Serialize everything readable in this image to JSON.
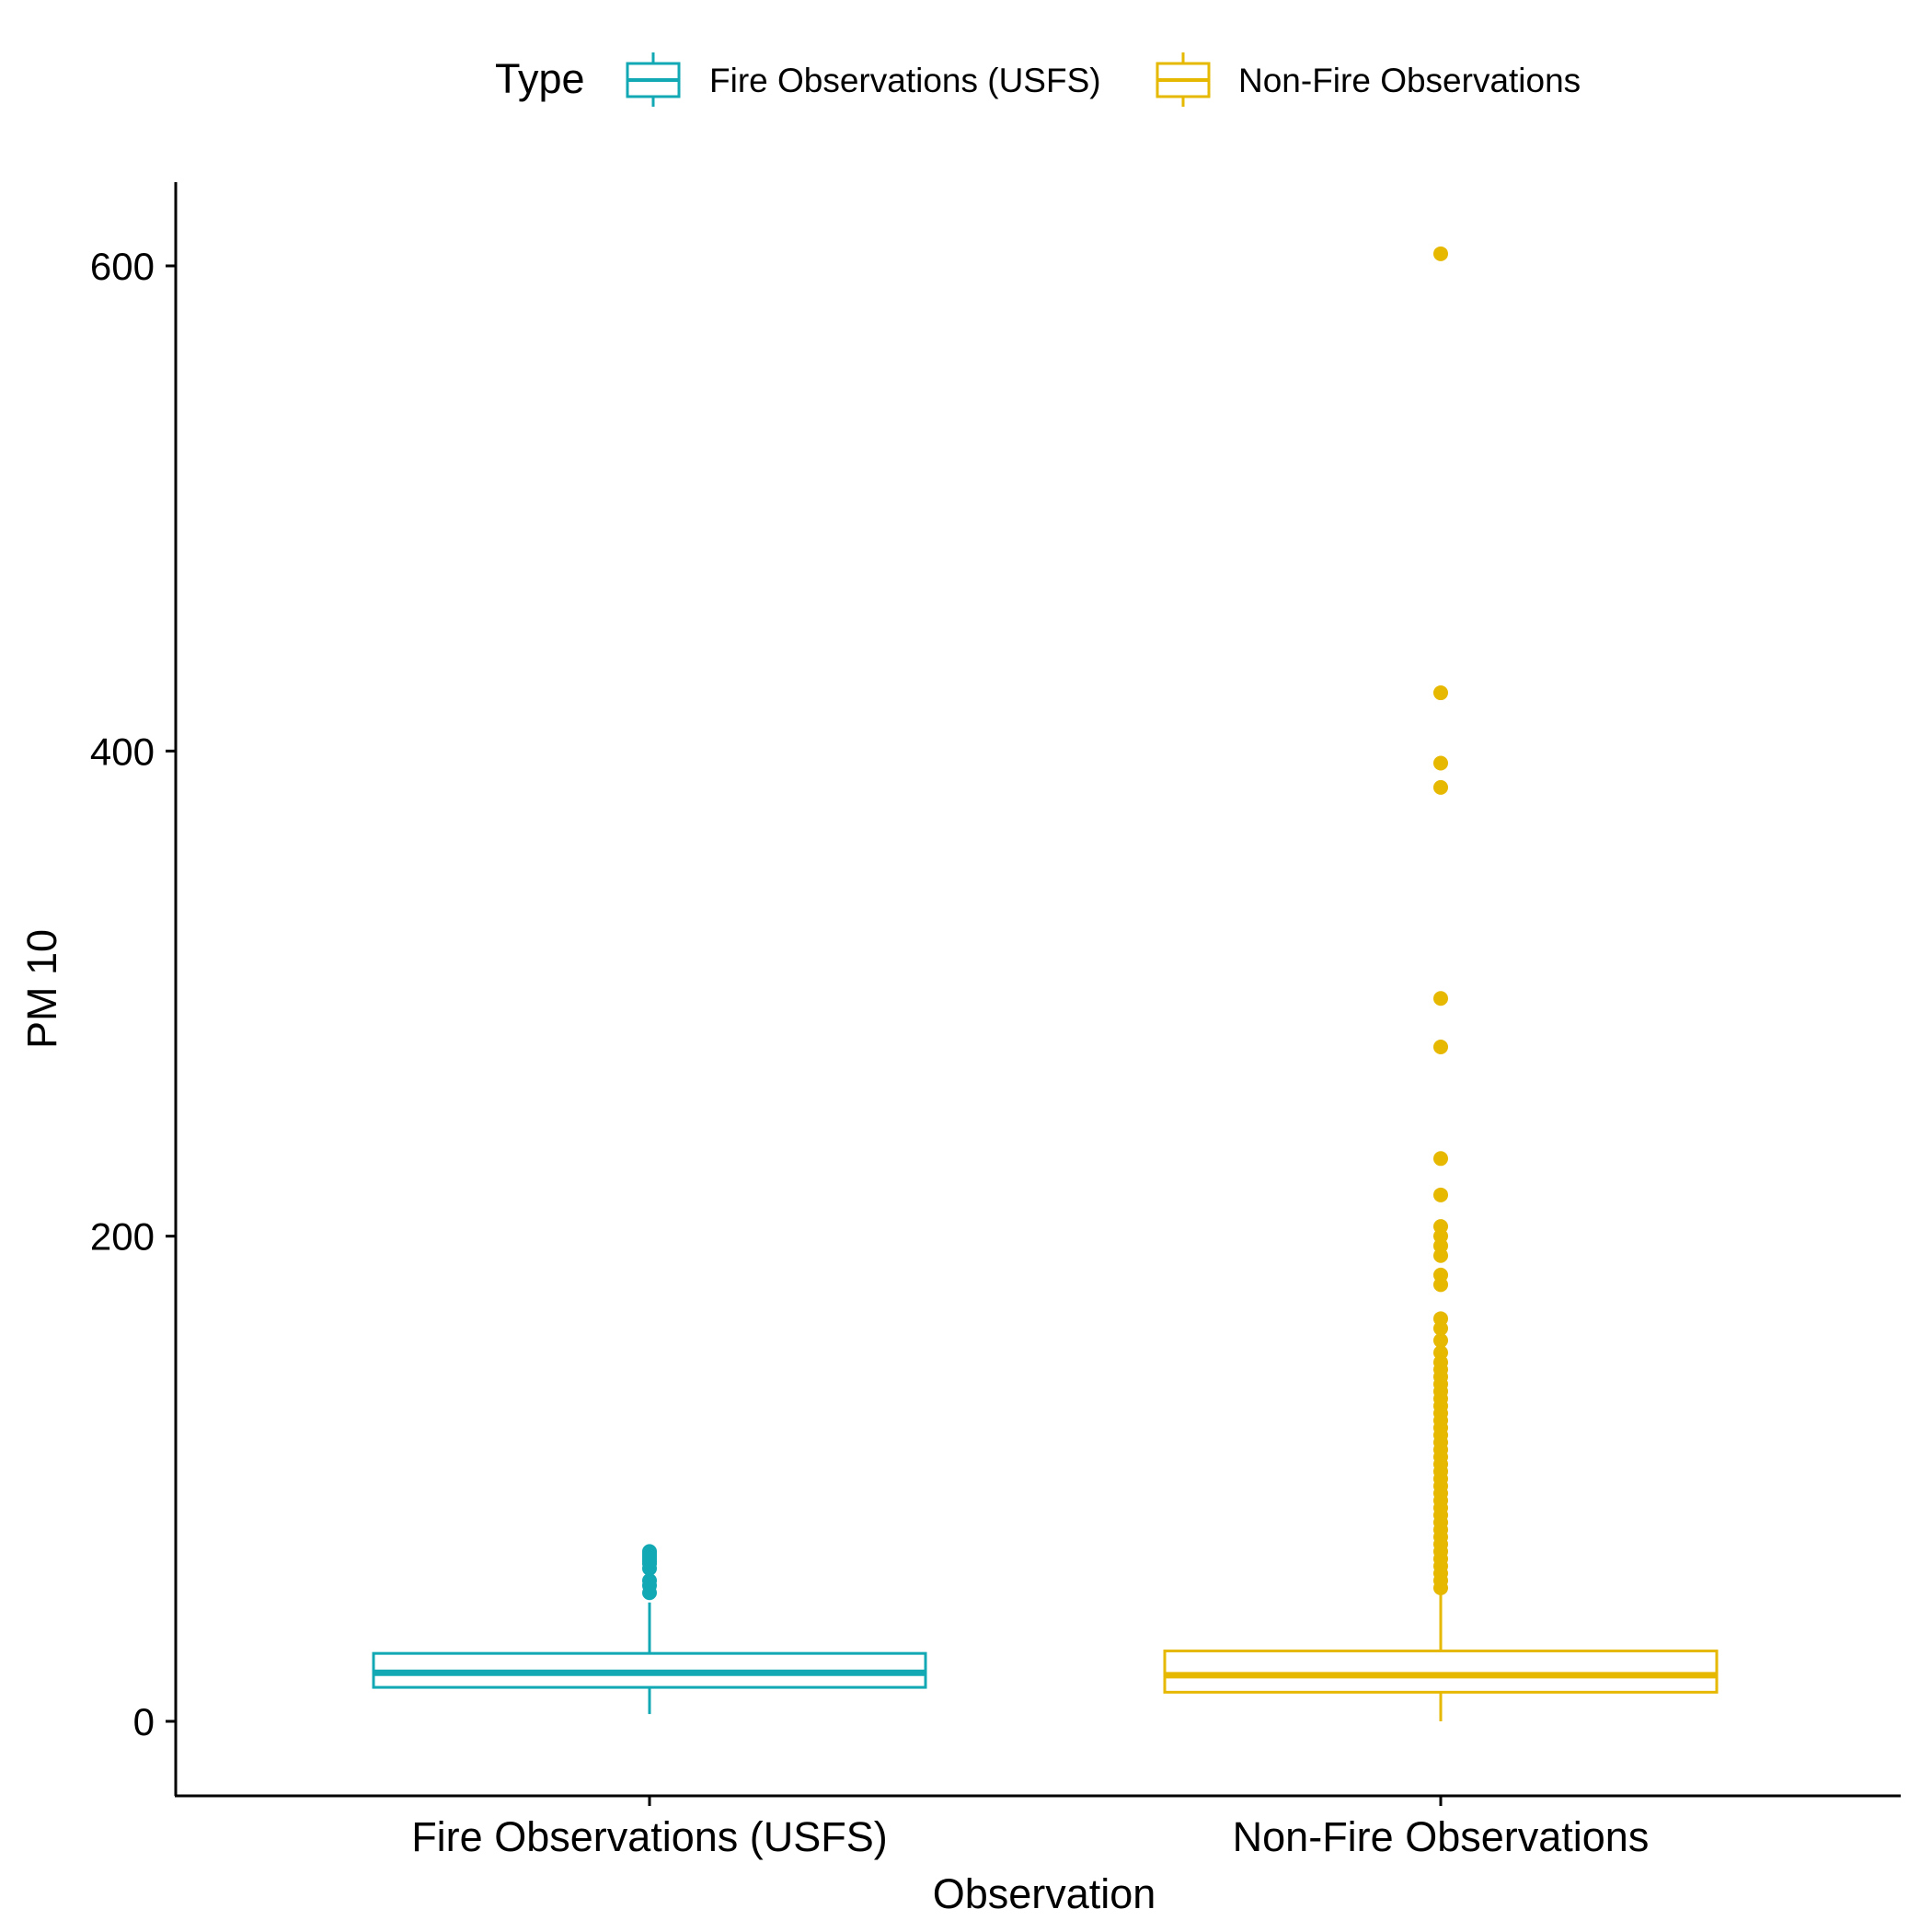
{
  "chart_data": {
    "type": "boxplot",
    "xlabel": "Observation",
    "ylabel": "PM 10",
    "ylim": [
      -30,
      635
    ],
    "yticks": [
      0,
      200,
      400,
      600
    ],
    "grid": false,
    "legend_position": "top",
    "legend": {
      "title": "Type",
      "entries": [
        "Fire Observations (USFS)",
        "Non-Fire Observations"
      ]
    },
    "categories": [
      "Fire Observations (USFS)",
      "Non-Fire Observations"
    ],
    "colors": [
      "#12A9B4",
      "#E6B800"
    ],
    "boxes": [
      {
        "name": "Fire Observations (USFS)",
        "min": 3,
        "q1": 14,
        "median": 20,
        "q3": 28,
        "max": 49,
        "outliers": [
          53,
          56,
          58,
          63,
          65,
          66,
          67,
          68,
          69,
          70
        ]
      },
      {
        "name": "Non-Fire Observations",
        "min": 0,
        "q1": 12,
        "median": 19,
        "q3": 29,
        "max": 52,
        "outliers": [
          55,
          58,
          61,
          64,
          67,
          70,
          73,
          76,
          79,
          82,
          85,
          88,
          91,
          94,
          97,
          100,
          103,
          106,
          109,
          112,
          115,
          118,
          121,
          124,
          127,
          130,
          133,
          136,
          139,
          142,
          145,
          148,
          152,
          157,
          162,
          166,
          180,
          184,
          192,
          196,
          200,
          204,
          217,
          232,
          278,
          298,
          385,
          395,
          424,
          605
        ]
      }
    ]
  }
}
